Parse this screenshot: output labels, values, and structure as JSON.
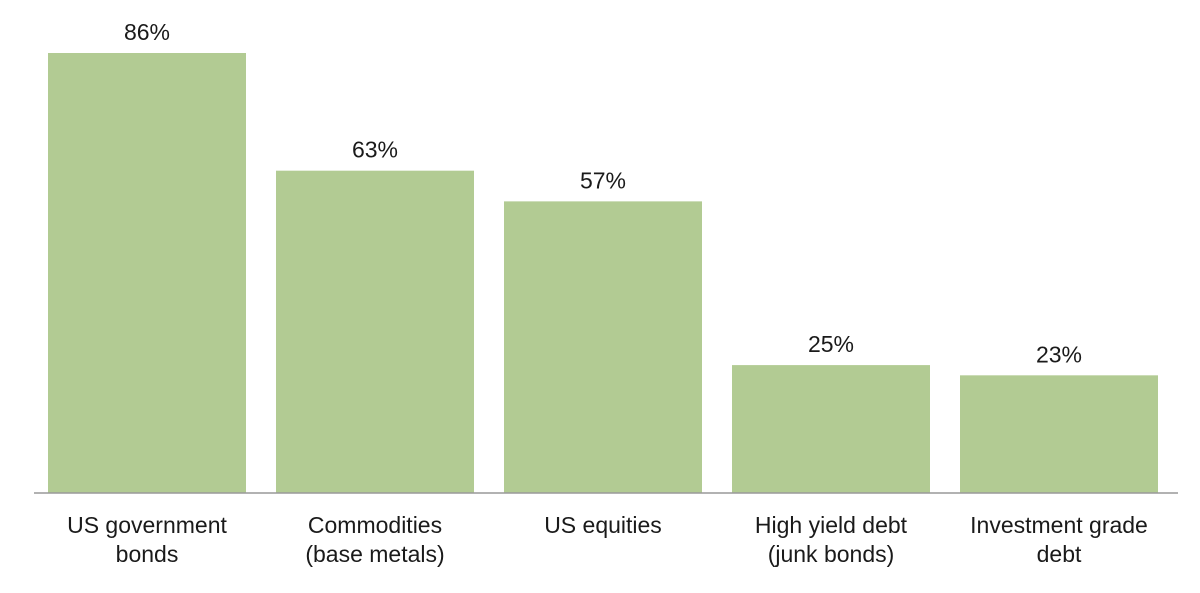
{
  "chart_data": {
    "type": "bar",
    "title": "",
    "xlabel": "",
    "ylabel": "",
    "categories": [
      [
        "US government",
        "bonds"
      ],
      [
        "Commodities",
        "(base metals)"
      ],
      [
        "US equities"
      ],
      [
        "High yield debt",
        "(junk bonds)"
      ],
      [
        "Investment grade",
        "debt"
      ]
    ],
    "values": [
      86,
      63,
      57,
      25,
      23
    ],
    "value_labels": [
      "86%",
      "63%",
      "57%",
      "25%",
      "23%"
    ],
    "unit": "%",
    "ylim": [
      0,
      100
    ],
    "grid": false,
    "legend": "none",
    "bar_color": "#b2cb93",
    "axis_color": "#999999"
  }
}
